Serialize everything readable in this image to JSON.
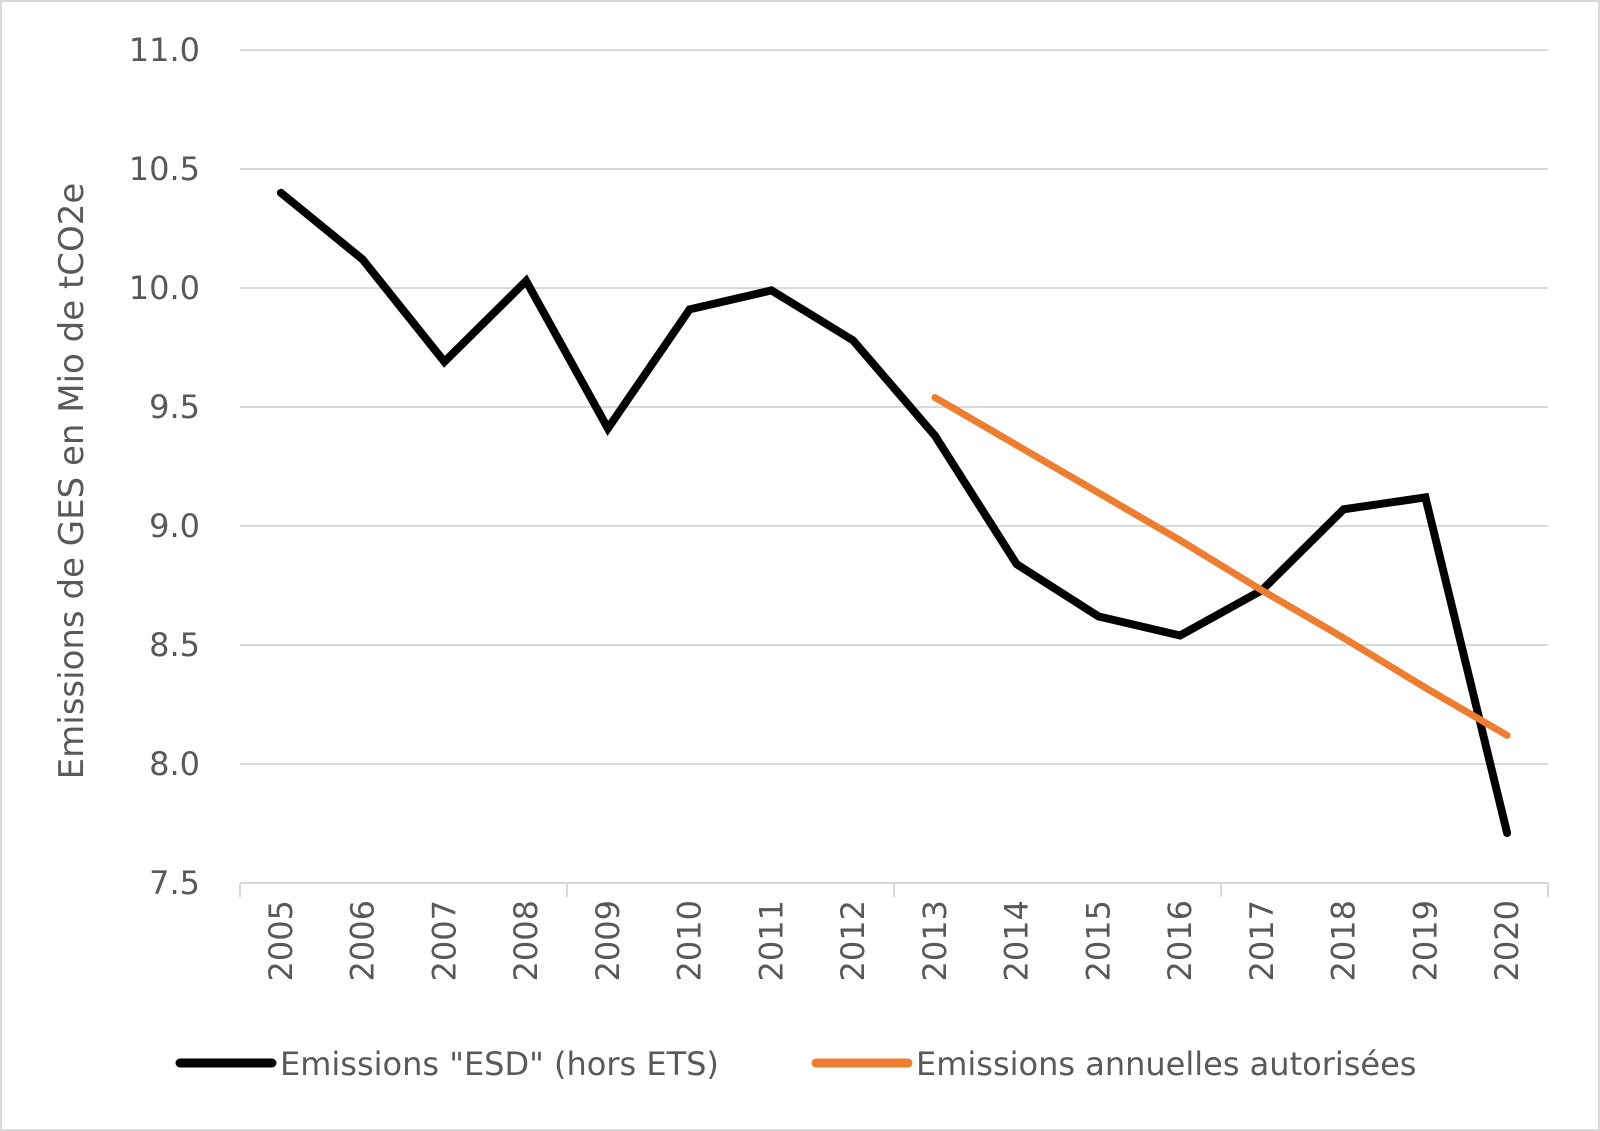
{
  "chart_data": {
    "type": "line",
    "title": "",
    "xlabel": "",
    "ylabel": "Emissions de GES en Mio de tCO2e",
    "ylim": [
      7.5,
      11.0
    ],
    "yticks": [
      "7.5",
      "8.0",
      "8.5",
      "9.0",
      "9.5",
      "10.0",
      "10.5",
      "11.0"
    ],
    "categories": [
      "2005",
      "2006",
      "2007",
      "2008",
      "2009",
      "2010",
      "2011",
      "2012",
      "2013",
      "2014",
      "2015",
      "2016",
      "2017",
      "2018",
      "2019",
      "2020"
    ],
    "grid": true,
    "legend_position": "bottom",
    "series": [
      {
        "name": "Emissions \"ESD\" (hors ETS)",
        "color": "#000000",
        "values": [
          10.4,
          10.12,
          9.69,
          10.03,
          9.41,
          9.91,
          9.99,
          9.78,
          9.38,
          8.84,
          8.62,
          8.54,
          8.73,
          9.07,
          9.12,
          7.71
        ]
      },
      {
        "name": "Emissions annuelles autorisées",
        "color": "#ed7d31",
        "values": [
          null,
          null,
          null,
          null,
          null,
          null,
          null,
          null,
          9.54,
          9.34,
          9.14,
          8.94,
          8.73,
          8.53,
          8.32,
          8.12
        ]
      }
    ]
  }
}
